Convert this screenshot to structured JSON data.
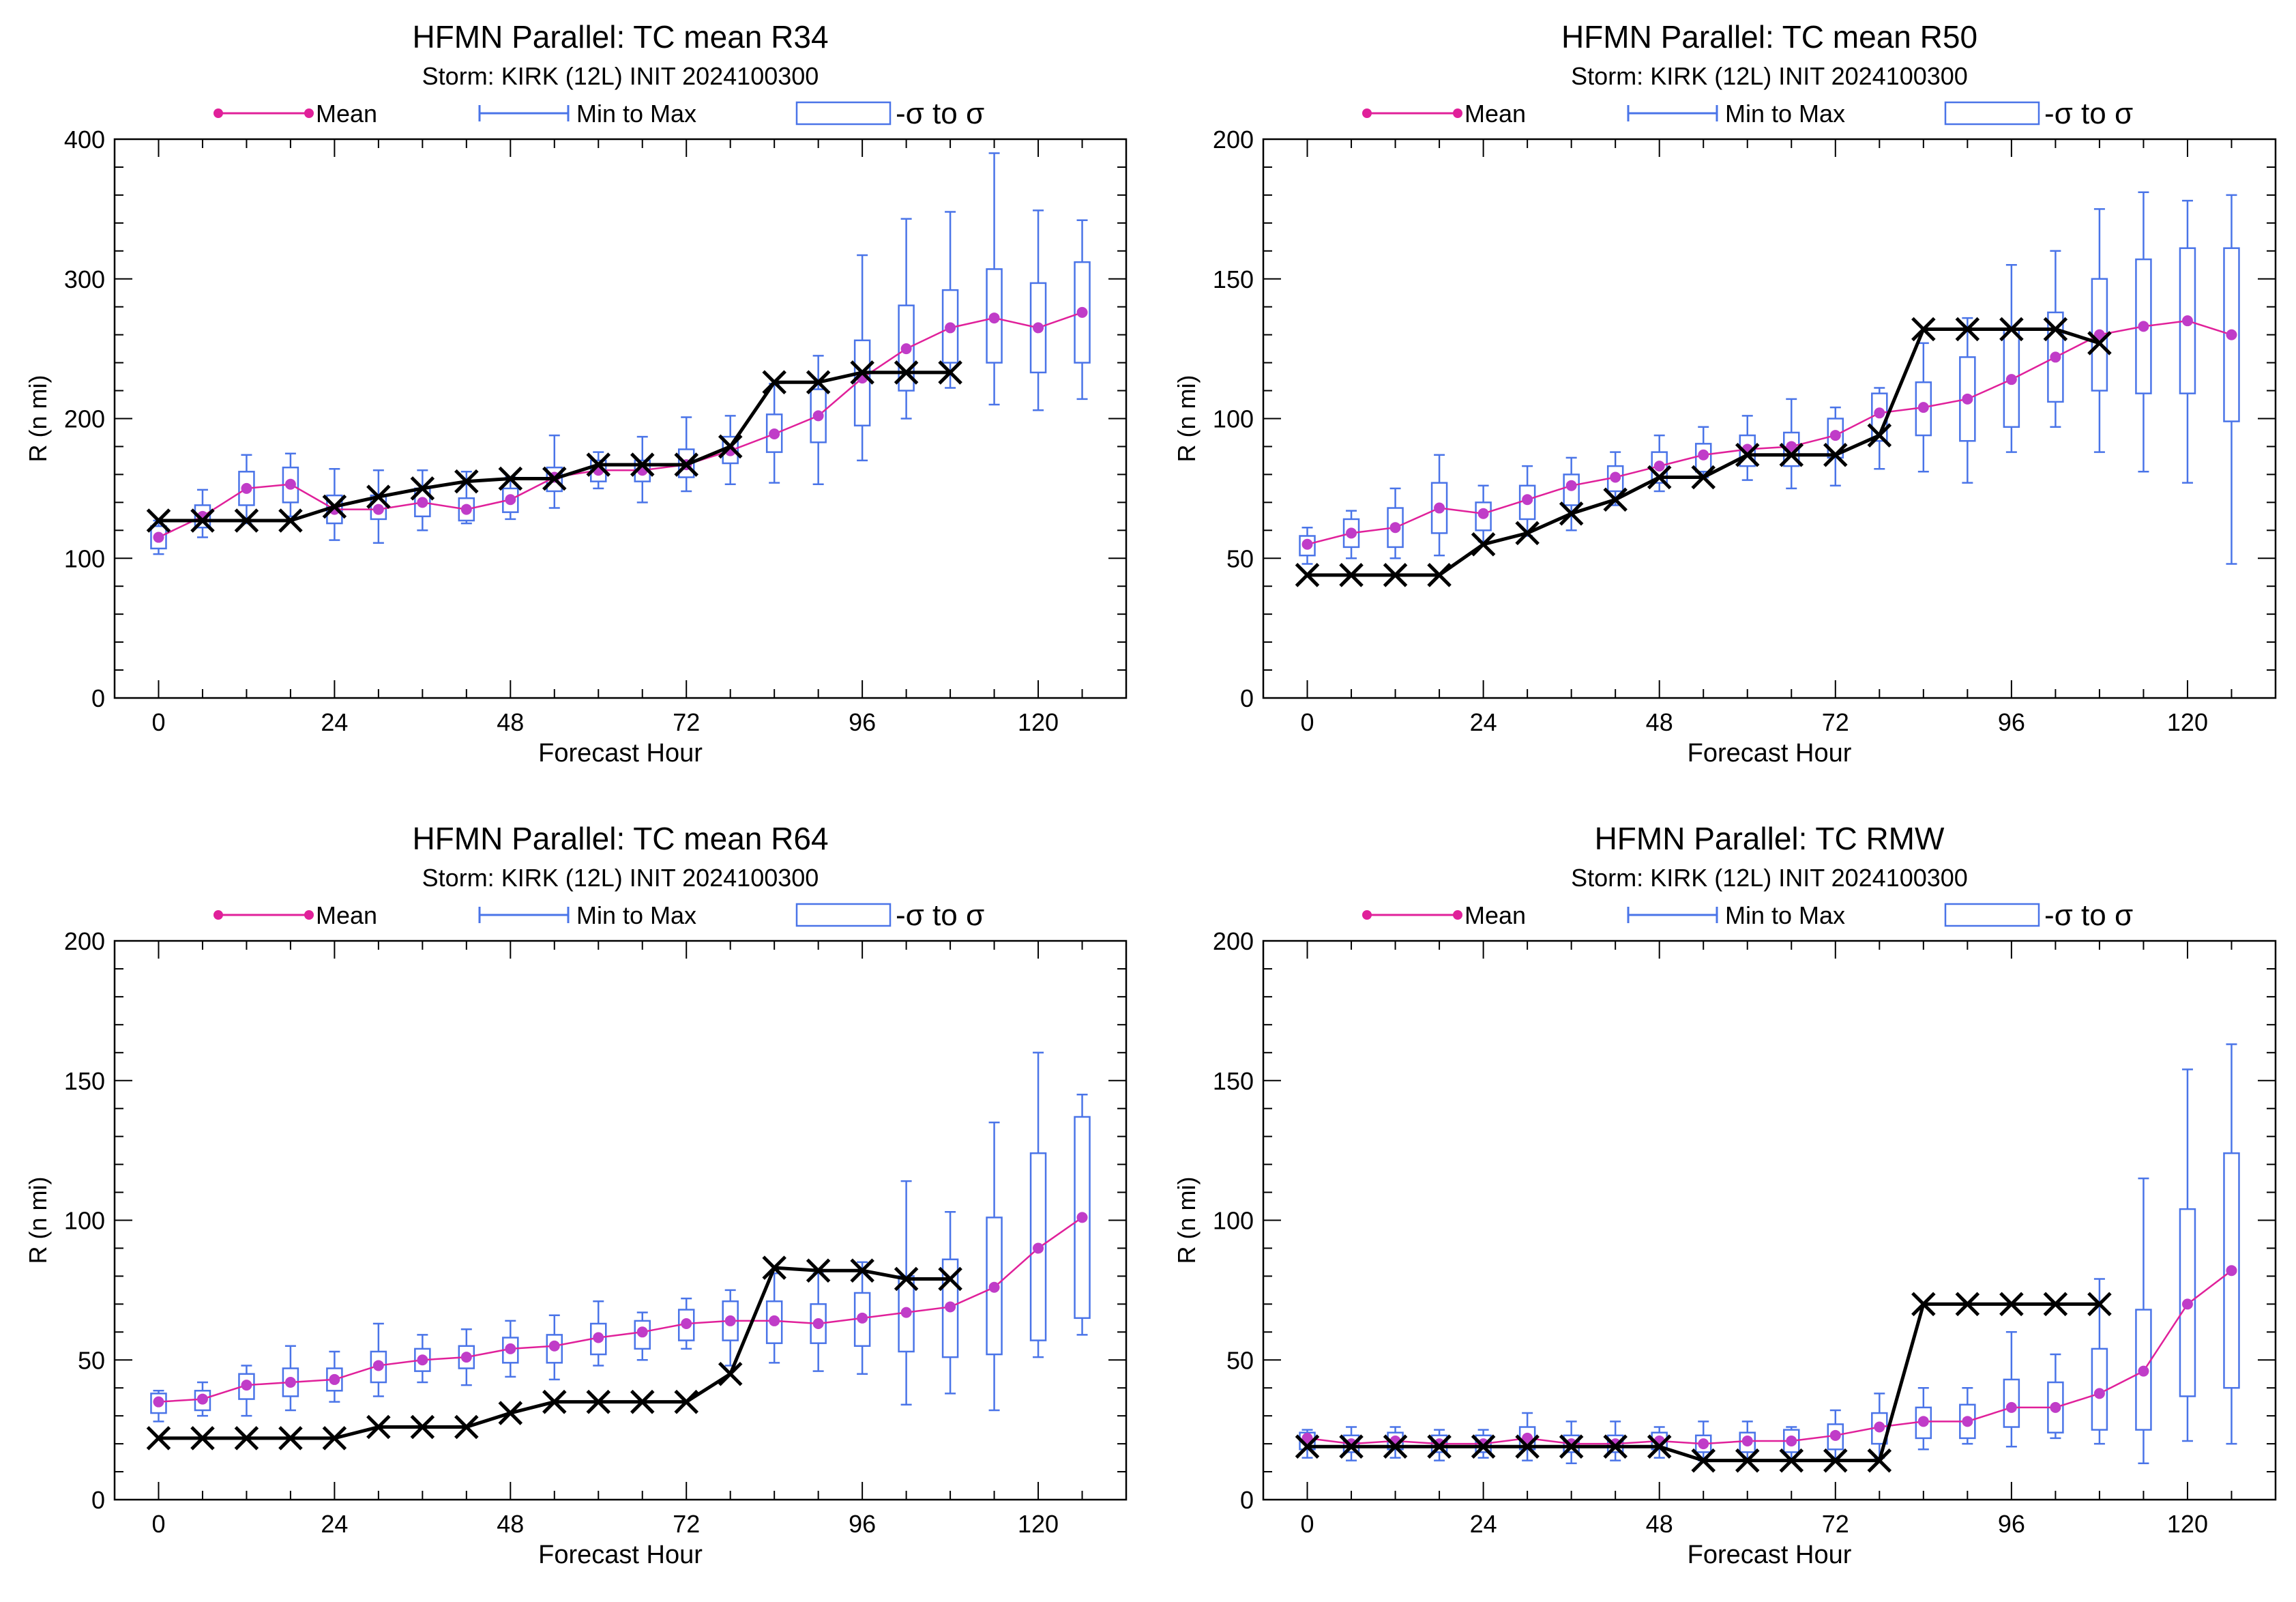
{
  "colors": {
    "mean": "#e0209a",
    "mean_dot": "#c03cc8",
    "range": "#4a74e8",
    "truth": "#000000"
  },
  "legend": {
    "mean": "Mean",
    "range": "Min to Max",
    "sigma": "-σ to σ"
  },
  "chart_data": [
    {
      "type": "box",
      "title": "HFMN Parallel: TC mean R34",
      "subtitle": "Storm: KIRK (12L) INIT 2024100300",
      "xlabel": "Forecast Hour",
      "ylabel": "R (n mi)",
      "xlim": [
        -6,
        132
      ],
      "ylim": [
        0,
        400
      ],
      "xticks": [
        0,
        24,
        48,
        72,
        96,
        120
      ],
      "yticks": [
        0,
        100,
        200,
        300,
        400
      ],
      "x": [
        0,
        6,
        12,
        18,
        24,
        30,
        36,
        42,
        48,
        54,
        60,
        66,
        72,
        78,
        84,
        90,
        96,
        102,
        108,
        114,
        120,
        126
      ],
      "mean": [
        115,
        130,
        150,
        153,
        135,
        135,
        140,
        135,
        142,
        158,
        163,
        163,
        167,
        177,
        189,
        202,
        229,
        250,
        265,
        272,
        265,
        276
      ],
      "sigma_low": [
        107,
        122,
        138,
        140,
        125,
        128,
        130,
        127,
        133,
        148,
        155,
        155,
        158,
        168,
        176,
        183,
        195,
        220,
        240,
        240,
        233,
        240
      ],
      "sigma_high": [
        123,
        138,
        162,
        165,
        145,
        145,
        150,
        143,
        150,
        165,
        170,
        170,
        178,
        187,
        203,
        221,
        256,
        281,
        292,
        307,
        297,
        312
      ],
      "min": [
        103,
        115,
        125,
        130,
        113,
        111,
        120,
        125,
        128,
        136,
        150,
        140,
        148,
        153,
        154,
        153,
        170,
        200,
        222,
        210,
        206,
        214
      ],
      "max": [
        127,
        149,
        174,
        175,
        164,
        163,
        163,
        162,
        158,
        188,
        176,
        187,
        201,
        202,
        225,
        245,
        317,
        343,
        348,
        390,
        349,
        342
      ],
      "truth": [
        127,
        127,
        127,
        127,
        137,
        144,
        150,
        155,
        157,
        157,
        167,
        167,
        167,
        180,
        226,
        226,
        233,
        233,
        233
      ]
    },
    {
      "type": "box",
      "title": "HFMN Parallel: TC mean R50",
      "subtitle": "Storm: KIRK (12L) INIT 2024100300",
      "xlabel": "Forecast Hour",
      "ylabel": "R (n mi)",
      "xlim": [
        -6,
        132
      ],
      "ylim": [
        0,
        200
      ],
      "xticks": [
        0,
        24,
        48,
        72,
        96,
        120
      ],
      "yticks": [
        0,
        50,
        100,
        150,
        200
      ],
      "x": [
        0,
        6,
        12,
        18,
        24,
        30,
        36,
        42,
        48,
        54,
        60,
        66,
        72,
        78,
        84,
        90,
        96,
        102,
        108,
        114,
        120,
        126
      ],
      "mean": [
        55,
        59,
        61,
        68,
        66,
        71,
        76,
        79,
        83,
        87,
        89,
        90,
        94,
        102,
        104,
        107,
        114,
        122,
        130,
        133,
        135,
        130
      ],
      "sigma_low": [
        51,
        54,
        54,
        59,
        60,
        64,
        69,
        74,
        77,
        81,
        83,
        83,
        86,
        92,
        94,
        92,
        97,
        106,
        110,
        109,
        109,
        99
      ],
      "sigma_high": [
        58,
        64,
        68,
        77,
        70,
        76,
        80,
        83,
        88,
        91,
        94,
        95,
        100,
        109,
        113,
        122,
        132,
        138,
        150,
        157,
        161,
        161
      ],
      "min": [
        48,
        50,
        50,
        51,
        56,
        58,
        60,
        69,
        74,
        79,
        78,
        75,
        76,
        82,
        81,
        77,
        88,
        97,
        88,
        81,
        77,
        48
      ],
      "max": [
        61,
        67,
        75,
        87,
        76,
        83,
        86,
        88,
        94,
        97,
        101,
        107,
        104,
        111,
        127,
        136,
        155,
        160,
        175,
        181,
        178,
        180
      ],
      "truth": [
        44,
        44,
        44,
        44,
        55,
        59,
        66,
        71,
        79,
        79,
        87,
        87,
        87,
        94,
        132,
        132,
        132,
        132,
        127
      ]
    },
    {
      "type": "box",
      "title": "HFMN Parallel: TC mean R64",
      "subtitle": "Storm: KIRK (12L) INIT 2024100300",
      "xlabel": "Forecast Hour",
      "ylabel": "R (n mi)",
      "xlim": [
        -6,
        132
      ],
      "ylim": [
        0,
        200
      ],
      "xticks": [
        0,
        24,
        48,
        72,
        96,
        120
      ],
      "yticks": [
        0,
        50,
        100,
        150,
        200
      ],
      "x": [
        0,
        6,
        12,
        18,
        24,
        30,
        36,
        42,
        48,
        54,
        60,
        66,
        72,
        78,
        84,
        90,
        96,
        102,
        108,
        114,
        120,
        126
      ],
      "mean": [
        35,
        36,
        41,
        42,
        43,
        48,
        50,
        51,
        54,
        55,
        58,
        60,
        63,
        64,
        64,
        63,
        65,
        67,
        69,
        76,
        90,
        101
      ],
      "sigma_low": [
        31,
        32,
        36,
        37,
        39,
        42,
        46,
        47,
        49,
        49,
        52,
        54,
        57,
        57,
        56,
        56,
        55,
        53,
        51,
        52,
        57,
        65
      ],
      "sigma_high": [
        38,
        39,
        45,
        47,
        47,
        53,
        54,
        55,
        58,
        59,
        63,
        64,
        68,
        71,
        71,
        70,
        74,
        80,
        86,
        101,
        124,
        137
      ],
      "min": [
        28,
        30,
        30,
        32,
        35,
        37,
        42,
        41,
        44,
        43,
        48,
        50,
        54,
        48,
        49,
        46,
        45,
        34,
        38,
        32,
        51,
        59
      ],
      "max": [
        39,
        42,
        48,
        55,
        53,
        63,
        59,
        61,
        64,
        66,
        71,
        67,
        72,
        75,
        81,
        81,
        85,
        114,
        103,
        135,
        160,
        145
      ],
      "truth": [
        22,
        22,
        22,
        22,
        22,
        26,
        26,
        26,
        31,
        35,
        35,
        35,
        35,
        45,
        83,
        82,
        82,
        79,
        79
      ]
    },
    {
      "type": "box",
      "title": "HFMN Parallel: TC RMW",
      "subtitle": "Storm: KIRK (12L) INIT 2024100300",
      "xlabel": "Forecast Hour",
      "ylabel": "R (n mi)",
      "xlim": [
        -6,
        132
      ],
      "ylim": [
        0,
        200
      ],
      "xticks": [
        0,
        24,
        48,
        72,
        96,
        120
      ],
      "yticks": [
        0,
        50,
        100,
        150,
        200
      ],
      "x": [
        0,
        6,
        12,
        18,
        24,
        30,
        36,
        42,
        48,
        54,
        60,
        66,
        72,
        78,
        84,
        90,
        96,
        102,
        108,
        114,
        120,
        126
      ],
      "mean": [
        22,
        20,
        21,
        20,
        20,
        22,
        20,
        20,
        21,
        20,
        21,
        21,
        23,
        26,
        28,
        28,
        33,
        33,
        38,
        46,
        70,
        82
      ],
      "sigma_low": [
        18,
        17,
        18,
        17,
        17,
        18,
        17,
        17,
        18,
        17,
        17,
        17,
        18,
        20,
        22,
        22,
        26,
        24,
        25,
        25,
        37,
        40
      ],
      "sigma_high": [
        24,
        23,
        24,
        23,
        23,
        26,
        23,
        23,
        24,
        23,
        24,
        25,
        27,
        31,
        33,
        34,
        43,
        42,
        54,
        68,
        104,
        124
      ],
      "min": [
        15,
        14,
        15,
        14,
        15,
        14,
        13,
        14,
        15,
        14,
        14,
        14,
        14,
        15,
        18,
        20,
        19,
        22,
        20,
        13,
        21,
        20
      ],
      "max": [
        25,
        26,
        26,
        25,
        25,
        31,
        28,
        28,
        26,
        28,
        28,
        26,
        32,
        38,
        40,
        40,
        60,
        52,
        79,
        115,
        154,
        163
      ],
      "truth": [
        19,
        19,
        19,
        19,
        19,
        19,
        19,
        19,
        19,
        14,
        14,
        14,
        14,
        14,
        70,
        70,
        70,
        70,
        70
      ]
    }
  ]
}
